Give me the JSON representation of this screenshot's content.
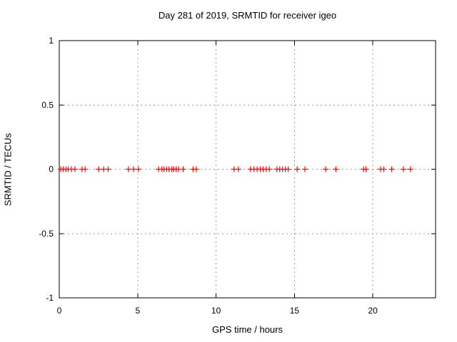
{
  "chart_data": {
    "type": "scatter",
    "title": "Day 281 of 2019, SRMTID for receiver igeo",
    "xlabel": "GPS time / hours",
    "ylabel": "SRMTID / TECUs",
    "xlim": [
      0,
      24
    ],
    "ylim": [
      -1,
      1
    ],
    "xticks": [
      0,
      5,
      10,
      15,
      20
    ],
    "xtick_labels": [
      "0",
      "5",
      "10",
      "15",
      "20"
    ],
    "yticks": [
      -1,
      -0.5,
      0,
      0.5,
      1
    ],
    "ytick_labels": [
      "-1",
      "-0.5",
      "0",
      "0.5",
      "1"
    ],
    "grid": true,
    "legend": "none",
    "marker": "plus",
    "colors": {
      "marker": "#ff0000",
      "grid": "#9e9e9e",
      "axis": "#000000",
      "background": "#ffffff",
      "text": "#000000"
    },
    "series": [
      {
        "name": "SRMTID",
        "x": [
          0.1,
          0.25,
          0.42,
          0.57,
          0.77,
          1.0,
          1.45,
          1.65,
          2.51,
          2.83,
          3.12,
          4.41,
          4.74,
          5.05,
          6.33,
          6.55,
          6.68,
          6.85,
          7.0,
          7.18,
          7.3,
          7.45,
          7.6,
          7.9,
          8.53,
          8.74,
          11.15,
          11.42,
          12.2,
          12.42,
          12.62,
          12.82,
          13.0,
          13.2,
          13.4,
          13.88,
          14.06,
          14.24,
          14.42,
          14.6,
          15.17,
          15.67,
          16.99,
          17.64,
          19.41,
          19.56,
          20.5,
          20.7,
          21.2,
          21.95,
          22.4
        ],
        "y": [
          0,
          0,
          0,
          0,
          0,
          0,
          0,
          0,
          0,
          0,
          0,
          0,
          0,
          0,
          0,
          0,
          0,
          0,
          0,
          0,
          0,
          0,
          0,
          0,
          0,
          0,
          0,
          0,
          0,
          0,
          0,
          0,
          0,
          0,
          0,
          0,
          0,
          0,
          0,
          0,
          0,
          0,
          0,
          0,
          0,
          0,
          0,
          0,
          0,
          0,
          0
        ]
      }
    ]
  }
}
